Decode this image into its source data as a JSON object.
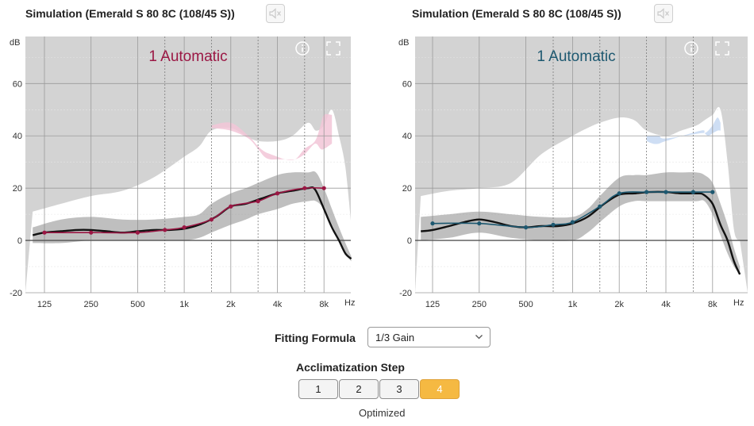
{
  "left_panel": {
    "title": "Simulation (Emerald S 80 8C (108/45 S))",
    "program_label": "1 Automatic",
    "accent": "#9b1744",
    "target_band_color": "#f2c6d7",
    "mute_icon": "speaker-muted-icon",
    "info_icon": "info-icon",
    "expand_icon": "expand-icon"
  },
  "right_panel": {
    "title": "Simulation (Emerald S 80 8C (108/45 S))",
    "program_label": "1 Automatic",
    "accent": "#1d5870",
    "target_band_color": "#c6d8f2",
    "mute_icon": "speaker-muted-icon",
    "info_icon": "info-icon",
    "expand_icon": "expand-icon"
  },
  "axes": {
    "y_unit": "dB",
    "x_unit": "Hz",
    "y_ticks": [
      "60",
      "40",
      "20",
      "0",
      "-20"
    ],
    "x_ticks": [
      "125",
      "250",
      "500",
      "1k",
      "2k",
      "4k",
      "8k"
    ]
  },
  "chart_data": [
    {
      "type": "line",
      "title": "1 Automatic",
      "xlabel": "Hz",
      "ylabel": "dB",
      "x_scale": "log",
      "ylim": [
        -20,
        78
      ],
      "x_ticks_hz": [
        125,
        250,
        500,
        1000,
        2000,
        4000,
        8000
      ],
      "series": [
        {
          "key": "target",
          "x": [
            125,
            250,
            500,
            750,
            1000,
            1500,
            2000,
            3000,
            4000,
            6000,
            8000
          ],
          "values": [
            3,
            3,
            3,
            4,
            5,
            8,
            13,
            15,
            18,
            20,
            20
          ]
        },
        {
          "key": "response",
          "x": [
            105,
            125,
            160,
            200,
            250,
            315,
            400,
            500,
            630,
            800,
            1000,
            1250,
            1600,
            2000,
            2500,
            3150,
            4000,
            5000,
            6300,
            7000,
            8000,
            9000,
            10000,
            11000,
            12000
          ],
          "values": [
            2,
            3,
            3.5,
            4,
            4,
            3.5,
            3,
            3.5,
            4,
            4,
            4.5,
            6,
            9,
            13,
            14,
            16,
            18,
            19,
            20,
            19.5,
            12,
            5,
            0,
            -5,
            -7
          ]
        }
      ],
      "shade": {
        "audio_range_x": [
          105,
          160,
          250,
          400,
          630,
          1000,
          1250,
          1500,
          2000,
          2500,
          3000,
          4000,
          5000,
          6300,
          7100,
          8000,
          9000,
          10000,
          11000,
          12000
        ],
        "audio_range_top": [
          11,
          14,
          17,
          19,
          24,
          32,
          36,
          42,
          43,
          40,
          38,
          38,
          40,
          45,
          42,
          44,
          50,
          40,
          28,
          6
        ],
        "gain_band_lower": [
          -1,
          -1,
          0,
          0,
          0,
          0,
          1,
          3,
          6,
          8,
          10,
          12,
          14,
          15,
          15,
          12,
          6,
          0,
          -5,
          -8
        ],
        "gain_band_upper": [
          5,
          8,
          9,
          8,
          8,
          9,
          10,
          14,
          18,
          20,
          22,
          25,
          26,
          26,
          26,
          20,
          12,
          5,
          -1,
          -6
        ],
        "target_band_x": [
          1500,
          2000,
          2600,
          3000,
          3300,
          3600,
          4000,
          4500,
          5200,
          6000,
          7000,
          7600,
          8000,
          9000
        ],
        "target_band_top": [
          44,
          45,
          40,
          36,
          34,
          33,
          32,
          31,
          31,
          35,
          38,
          44,
          48,
          48
        ],
        "target_band_bottom": [
          43,
          42,
          39,
          35,
          32,
          31,
          31,
          31,
          31,
          33,
          37,
          35,
          35,
          37
        ]
      }
    },
    {
      "type": "line",
      "title": "1 Automatic",
      "xlabel": "Hz",
      "ylabel": "dB",
      "x_scale": "log",
      "ylim": [
        -20,
        78
      ],
      "x_ticks_hz": [
        125,
        250,
        500,
        1000,
        2000,
        4000,
        8000
      ],
      "series": [
        {
          "key": "target",
          "x": [
            125,
            250,
            500,
            750,
            1000,
            1500,
            2000,
            3000,
            4000,
            6000,
            8000
          ],
          "values": [
            6.5,
            6.5,
            5,
            6,
            7,
            13,
            18,
            18.5,
            18.5,
            18.5,
            18.5
          ]
        },
        {
          "key": "response",
          "x": [
            105,
            125,
            160,
            200,
            250,
            315,
            400,
            500,
            630,
            800,
            1000,
            1250,
            1600,
            2000,
            2500,
            3150,
            4000,
            5000,
            6300,
            7000,
            8000,
            9000,
            10000,
            11000,
            12000
          ],
          "values": [
            3.5,
            4,
            5.5,
            7,
            8,
            7,
            5.5,
            5,
            5.5,
            5.5,
            6.5,
            9,
            14,
            17.5,
            18,
            18.5,
            18.5,
            18,
            18,
            17.5,
            14,
            6,
            0,
            -8,
            -13
          ]
        }
      ],
      "shade": {
        "audio_range_x": [
          105,
          160,
          250,
          400,
          630,
          1000,
          1250,
          1500,
          2000,
          2500,
          3000,
          4000,
          5000,
          6300,
          7100,
          8000,
          9000,
          10000,
          11000,
          12000
        ],
        "audio_range_top": [
          17,
          19,
          20,
          22,
          33,
          40,
          43,
          45,
          47,
          46,
          42,
          40,
          42,
          44,
          46,
          48,
          50,
          30,
          4,
          0
        ],
        "gain_band_lower": [
          0,
          1,
          3,
          1,
          0,
          0,
          3,
          7,
          13,
          15,
          15,
          15,
          15,
          15,
          15,
          10,
          2,
          -5,
          -10,
          -13
        ],
        "gain_band_upper": [
          9,
          10,
          11,
          10,
          9,
          9,
          12,
          17,
          24,
          25,
          25,
          26,
          26,
          26,
          25,
          22,
          14,
          6,
          -3,
          -10
        ],
        "target_band_x": [
          3000,
          3300,
          3600,
          4000,
          6700,
          7100,
          7500,
          8000,
          8600,
          9000
        ],
        "target_band_top": [
          40,
          40,
          40,
          39,
          41,
          41,
          42,
          44,
          47,
          45
        ],
        "target_band_bottom": [
          38,
          37,
          37,
          38,
          42,
          41,
          40,
          41,
          42,
          42
        ]
      }
    }
  ],
  "controls": {
    "fitting_formula_label": "Fitting Formula",
    "fitting_formula_value": "1/3 Gain",
    "acclimatization_label": "Acclimatization Step",
    "steps": [
      "1",
      "2",
      "3",
      "4"
    ],
    "active_step": "4",
    "step_status": "Optimized",
    "active_color": "#f5b942"
  }
}
